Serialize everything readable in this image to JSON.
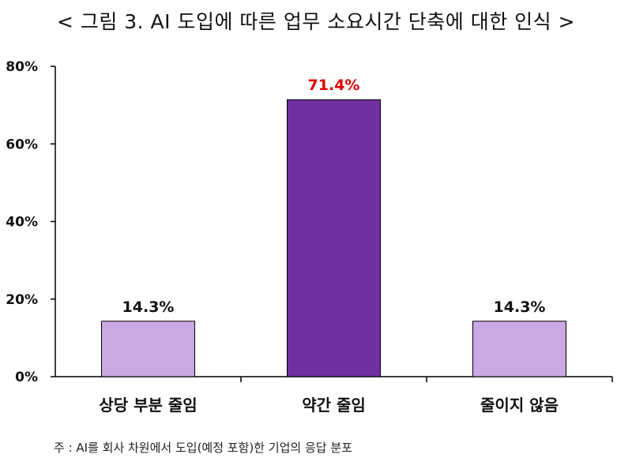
{
  "title": "< 그림 3. AI 도입에 따른 업무 소요시간 단축에 대한 인식 >",
  "note": "주 : AI를 회사 차원에서 도입(예정 포함)한 기업의 응답 분포",
  "chart_data": {
    "type": "bar",
    "categories": [
      "상당 부분 줄임",
      "약간 줄임",
      "줄이지 않음"
    ],
    "values": [
      14.3,
      71.4,
      14.3
    ],
    "value_labels": [
      "14.3%",
      "71.4%",
      "14.3%"
    ],
    "ylim": [
      0,
      80
    ],
    "yticks": [
      0,
      20,
      40,
      60,
      80
    ],
    "ytick_labels": [
      "0%",
      "20%",
      "40%",
      "60%",
      "80%"
    ],
    "bar_colors": [
      "#c9a8e3",
      "#7030a0",
      "#c9a8e3"
    ],
    "label_colors": [
      "#111111",
      "#e00000",
      "#111111"
    ],
    "grid": false,
    "legend": "none"
  }
}
